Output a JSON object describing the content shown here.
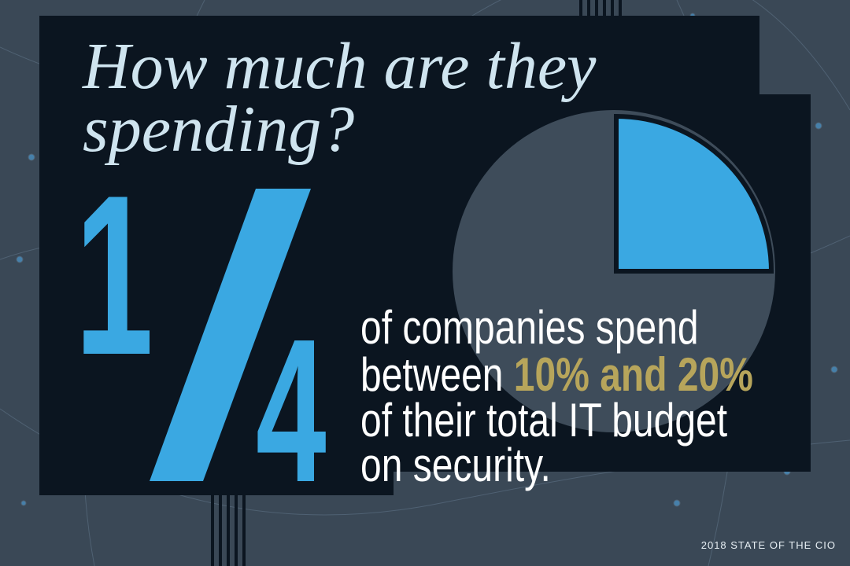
{
  "title": {
    "line1": "How much are they",
    "line2": "spending?"
  },
  "fraction": {
    "numerator": "1",
    "denominator": "4"
  },
  "statement": {
    "line1": "of companies spend",
    "line2_prefix": "between ",
    "line2_highlight": "10% and 20%",
    "line3": "of their total IT budget",
    "line4": "on security."
  },
  "footer": "2018 STATE OF THE CIO"
}
